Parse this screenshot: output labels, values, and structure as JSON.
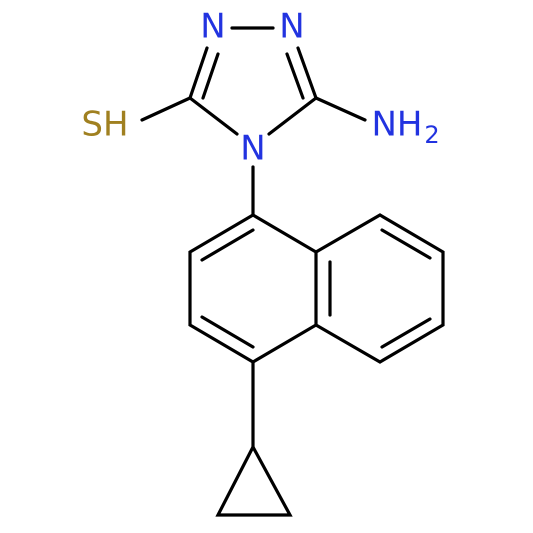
{
  "atoms": {
    "n1": "N",
    "n2": "N",
    "n4": "N",
    "sh": "SH",
    "nh": "NH",
    "nh_sub": "2"
  }
}
